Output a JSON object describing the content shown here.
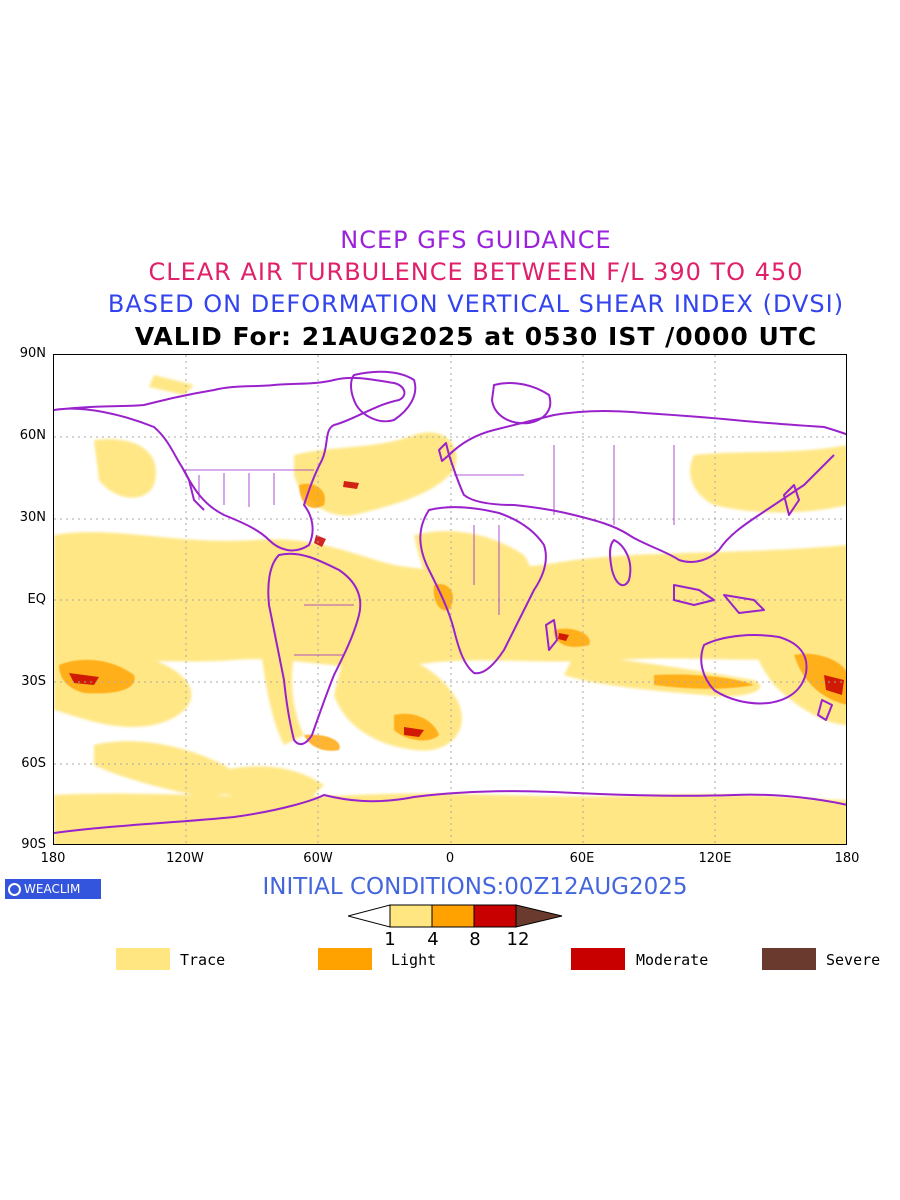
{
  "titles": {
    "line1": "NCEP GFS GUIDANCE",
    "line2": "CLEAR AIR TURBULENCE BETWEEN F/L 390 TO 450",
    "line3": "BASED ON DEFORMATION VERTICAL SHEAR INDEX (DVSI)",
    "line4": "VALID For: 21AUG2025 at 0530 IST /0000 UTC"
  },
  "colors": {
    "line1": "#9a22dd",
    "line2": "#e0206a",
    "line3": "#3344ee",
    "line4": "#000000",
    "coast": "#9a22cc",
    "trace": "#ffe680",
    "light": "#ffa200",
    "moderate": "#c80000",
    "severe": "#6b3a2e",
    "grid": "#aaaaaa"
  },
  "axes": {
    "lat_labels": [
      "90N",
      "60N",
      "30N",
      "EQ",
      "30S",
      "60S",
      "90S"
    ],
    "lon_labels": [
      "180",
      "120W",
      "60W",
      "0",
      "60E",
      "120E",
      "180"
    ]
  },
  "badge": {
    "text": "WEACLIM",
    "icon": "copyright-circle-icon"
  },
  "initial_conditions": "INITIAL CONDITIONS:00Z12AUG2025",
  "colorbar": {
    "ticks": [
      "1",
      "4",
      "8",
      "12"
    ]
  },
  "legend": [
    {
      "label": "Trace",
      "color": "#ffe680"
    },
    {
      "label": "Light",
      "color": "#ffa200"
    },
    {
      "label": "Moderate",
      "color": "#c80000"
    },
    {
      "label": "Severe",
      "color": "#6b3a2e"
    }
  ]
}
